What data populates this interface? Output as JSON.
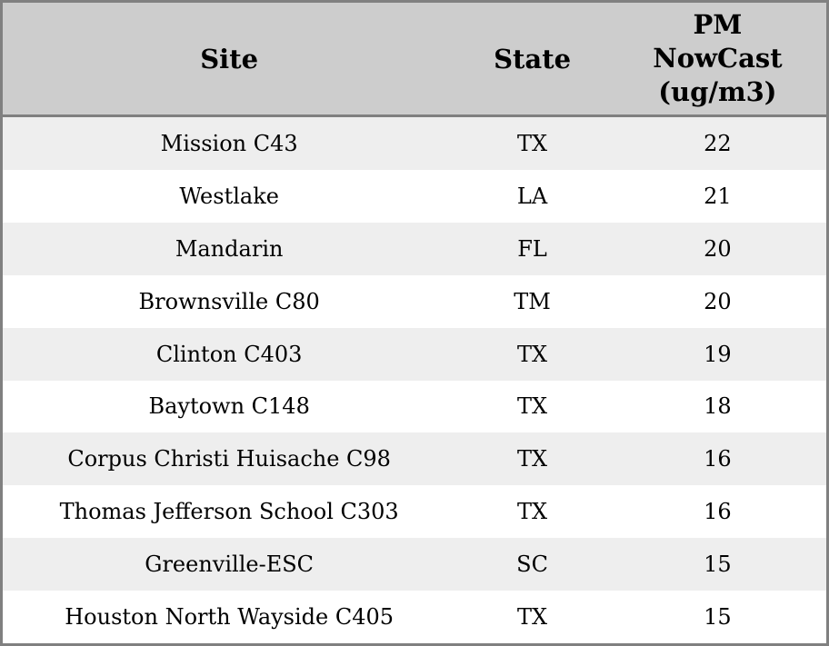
{
  "table": {
    "columns": [
      {
        "key": "site",
        "label": "Site"
      },
      {
        "key": "state",
        "label": "State"
      },
      {
        "key": "pm",
        "label": "PM\nNowCast\n(ug/m3)"
      }
    ],
    "rows": [
      {
        "site": "Mission C43",
        "state": "TX",
        "pm": "22"
      },
      {
        "site": "Westlake",
        "state": "LA",
        "pm": "21"
      },
      {
        "site": "Mandarin",
        "state": "FL",
        "pm": "20"
      },
      {
        "site": "Brownsville C80",
        "state": "TM",
        "pm": "20"
      },
      {
        "site": "Clinton C403",
        "state": "TX",
        "pm": "19"
      },
      {
        "site": "Baytown C148",
        "state": "TX",
        "pm": "18"
      },
      {
        "site": "Corpus Christi Huisache C98",
        "state": "TX",
        "pm": "16"
      },
      {
        "site": "Thomas Jefferson School C303",
        "state": "TX",
        "pm": "16"
      },
      {
        "site": "Greenville-ESC",
        "state": "SC",
        "pm": "15"
      },
      {
        "site": "Houston North Wayside C405",
        "state": "TX",
        "pm": "15"
      }
    ]
  },
  "colors": {
    "header_background": "#cdcdcd",
    "row_alternate": "#eeeeee",
    "row_default": "#ffffff",
    "border": "#808080",
    "text": "#000000"
  },
  "chart_data": {
    "type": "table",
    "title": "",
    "columns": [
      "Site",
      "State",
      "PM NowCast (ug/m3)"
    ],
    "rows": [
      [
        "Mission C43",
        "TX",
        22
      ],
      [
        "Westlake",
        "LA",
        21
      ],
      [
        "Mandarin",
        "FL",
        20
      ],
      [
        "Brownsville C80",
        "TM",
        20
      ],
      [
        "Clinton C403",
        "TX",
        19
      ],
      [
        "Baytown C148",
        "TX",
        18
      ],
      [
        "Corpus Christi Huisache C98",
        "TX",
        16
      ],
      [
        "Thomas Jefferson School C303",
        "TX",
        16
      ],
      [
        "Greenville-ESC",
        "SC",
        15
      ],
      [
        "Houston North Wayside C405",
        "TX",
        15
      ]
    ],
    "layout_hints": {
      "striped_rows": true,
      "header_bold": true,
      "all_cells_centered": true
    }
  }
}
